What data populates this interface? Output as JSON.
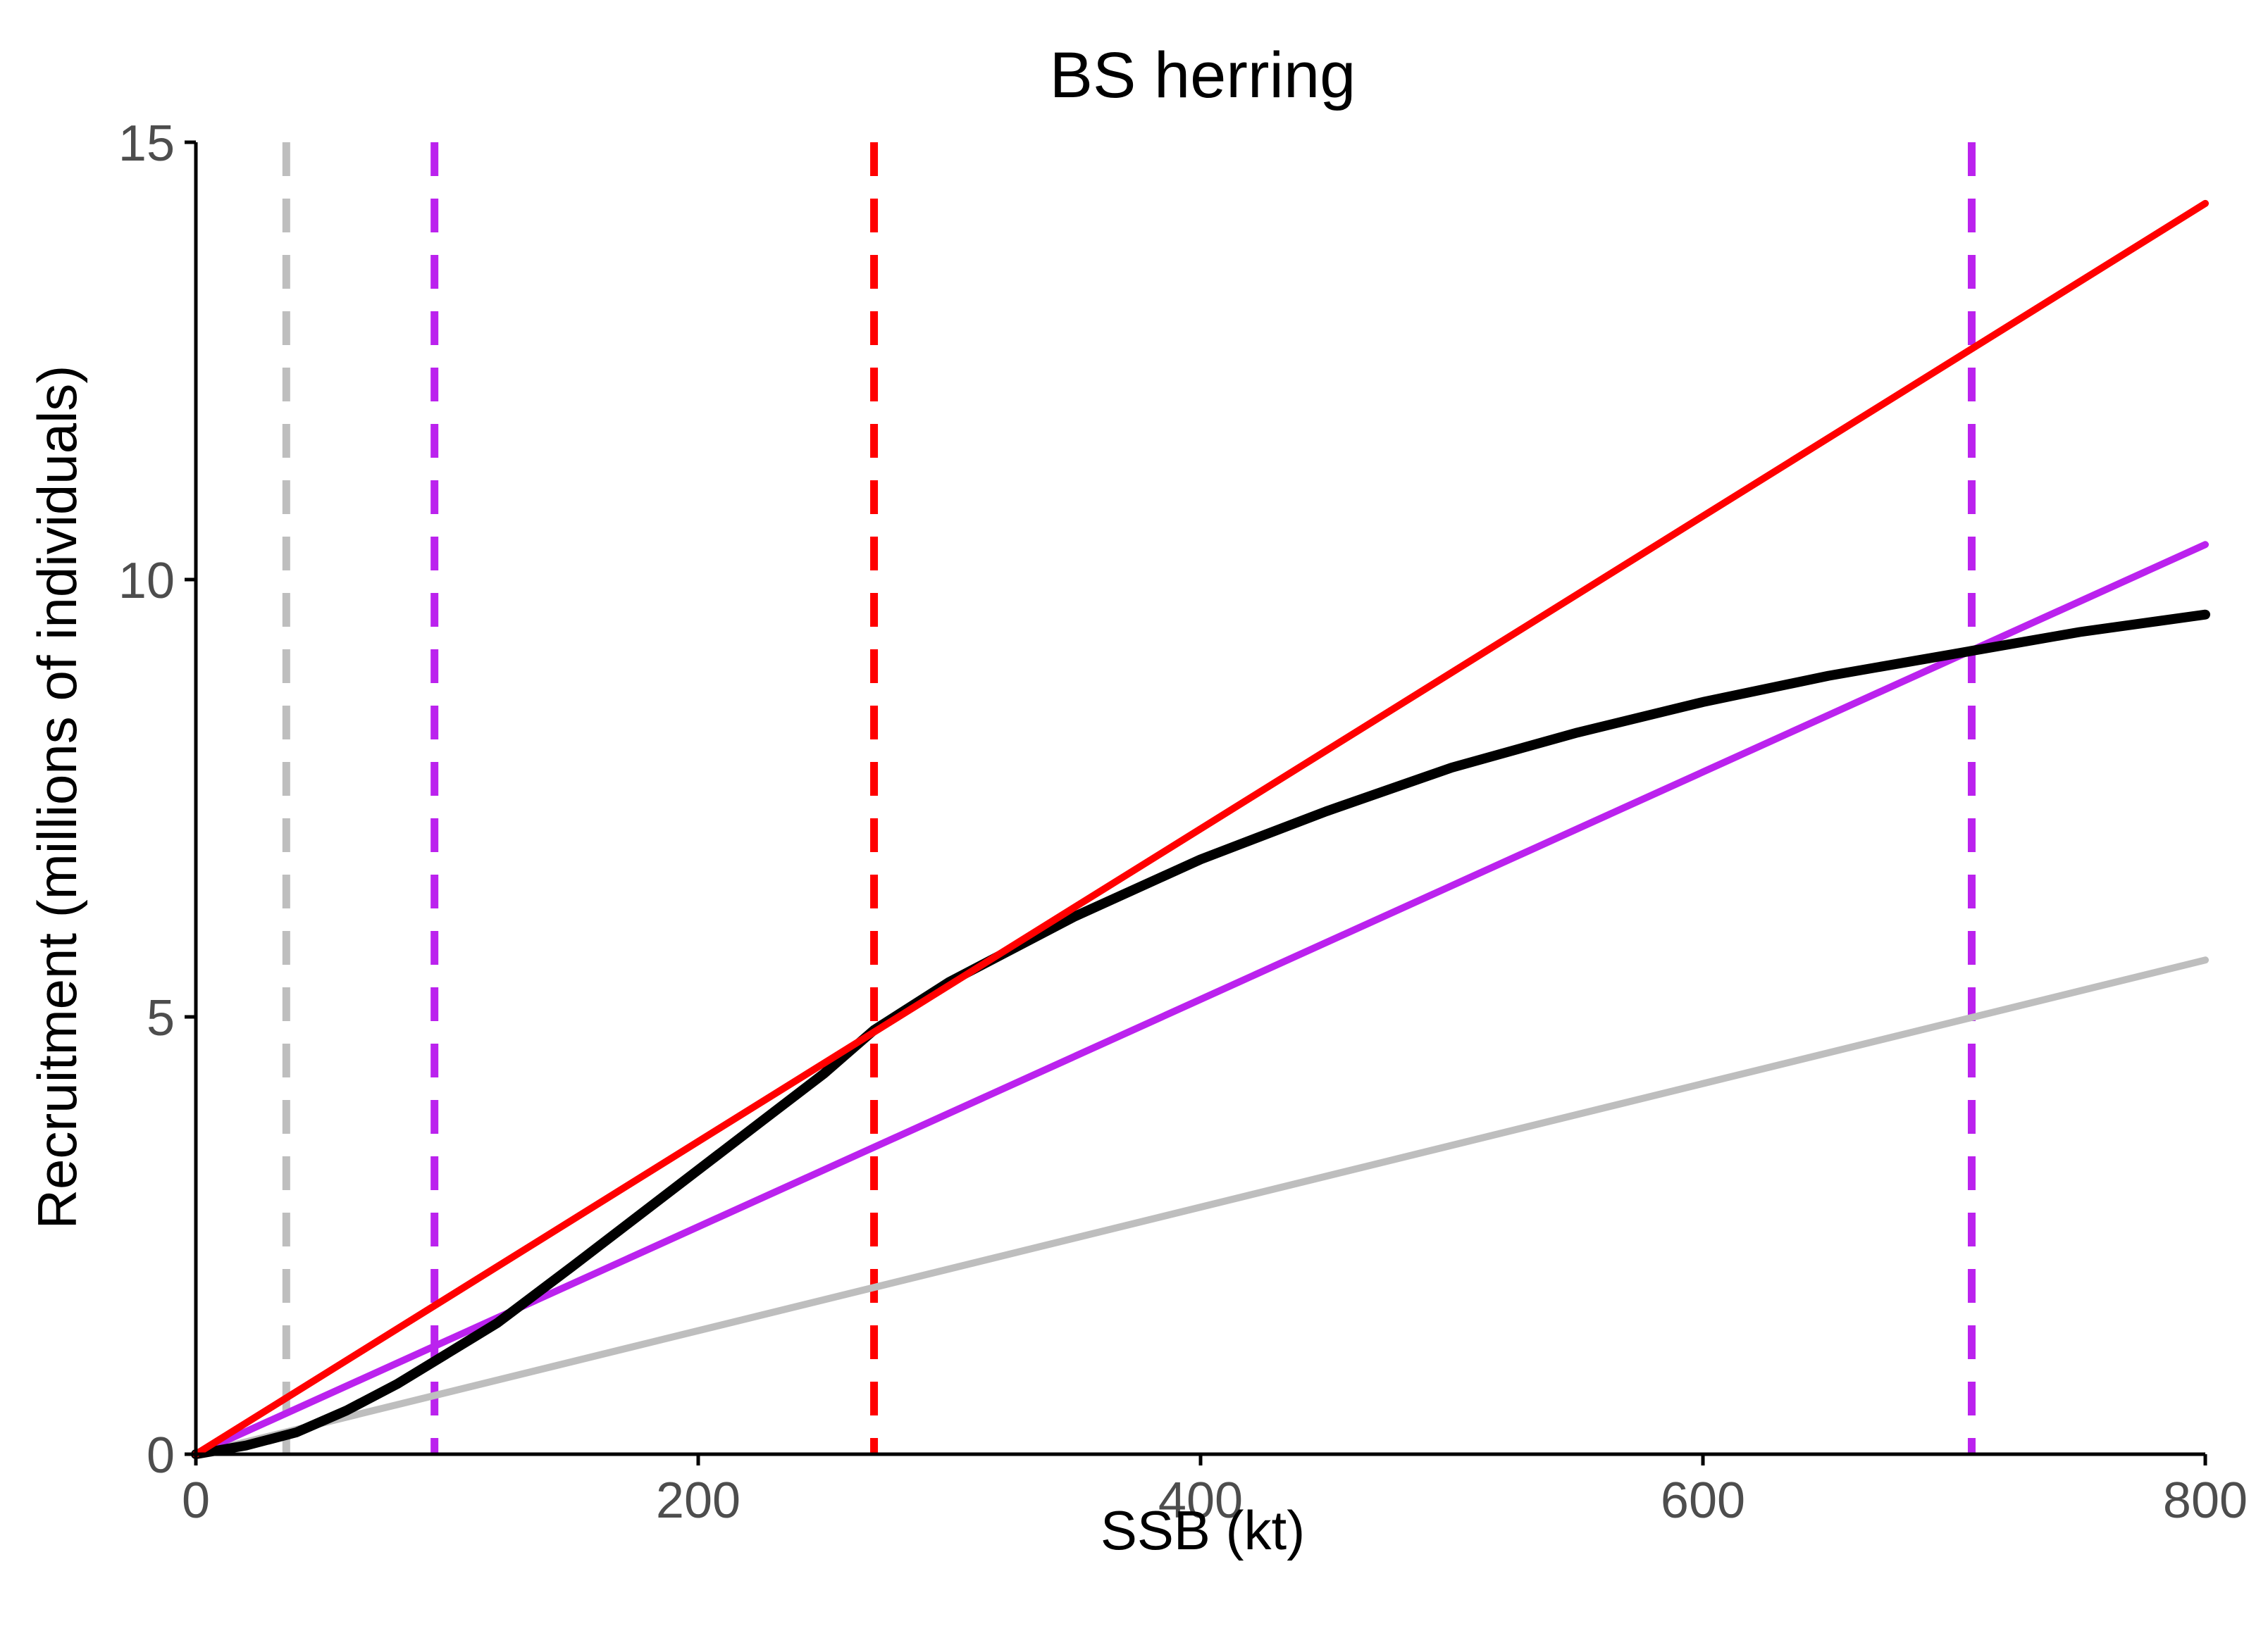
{
  "chart_data": {
    "type": "line",
    "title": "BS herring",
    "xlabel": "SSB (kt)",
    "ylabel": "Recruitment (millions of individuals)",
    "xlim": [
      0,
      800
    ],
    "ylim": [
      0,
      15
    ],
    "x_ticks": [
      0,
      200,
      400,
      600,
      800
    ],
    "y_ticks": [
      0,
      5,
      10,
      15
    ],
    "grid": false,
    "legend": "none",
    "series": [
      {
        "color": "#000000",
        "style": "solid",
        "x": [
          0,
          20,
          40,
          60,
          80,
          100,
          120,
          150,
          175,
          200,
          225,
          250,
          270,
          300,
          350,
          400,
          450,
          500,
          550,
          600,
          650,
          700,
          750,
          800
        ],
        "y": [
          0,
          0.1,
          0.25,
          0.5,
          0.8,
          1.15,
          1.5,
          2.15,
          2.7,
          3.25,
          3.8,
          4.35,
          4.85,
          5.4,
          6.15,
          6.8,
          7.35,
          7.85,
          8.25,
          8.6,
          8.9,
          9.15,
          9.4,
          9.6
        ]
      },
      {
        "color": "#ff0000",
        "style": "solid",
        "x": [
          0,
          800
        ],
        "y": [
          0,
          14.3
        ]
      },
      {
        "color": "#bb22ee",
        "style": "solid",
        "x": [
          0,
          800
        ],
        "y": [
          0,
          10.4
        ]
      },
      {
        "color": "#bebebe",
        "style": "solid",
        "x": [
          0,
          800
        ],
        "y": [
          0,
          5.65
        ]
      }
    ],
    "vlines": [
      {
        "x": 36,
        "color": "#bebebe",
        "style": "dashed"
      },
      {
        "x": 95,
        "color": "#bb22ee",
        "style": "dashed"
      },
      {
        "x": 270,
        "color": "#ff0000",
        "style": "dashed"
      },
      {
        "x": 707,
        "color": "#bb22ee",
        "style": "dashed"
      }
    ]
  }
}
